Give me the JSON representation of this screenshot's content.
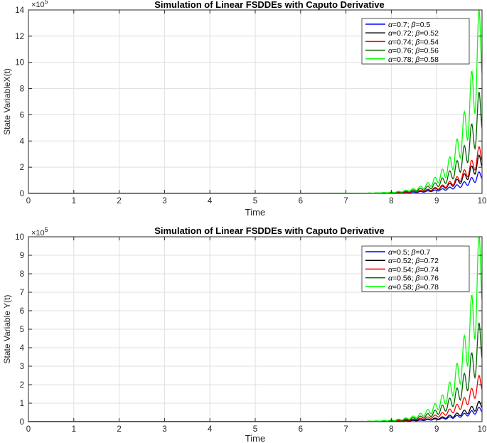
{
  "chart_data": [
    {
      "type": "line",
      "title": "Simulation of Linear FSDDEs with Caputo Derivative",
      "xlabel": "Time",
      "ylabel": "State VariableX(t)",
      "y_exponent_label": "×10",
      "y_exponent_power": "5",
      "xlim": [
        0,
        10
      ],
      "ylim": [
        0,
        14
      ],
      "xticks": [
        "0",
        "1",
        "2",
        "3",
        "4",
        "5",
        "6",
        "7",
        "8",
        "9",
        "10"
      ],
      "yticks": [
        "0",
        "2",
        "4",
        "6",
        "8",
        "10",
        "12",
        "14"
      ],
      "grid": true,
      "legend_position": "top-right",
      "series": [
        {
          "name": "α=0.7; β=0.5",
          "legend_prefix": "α",
          "legend_value": "=0.7; ",
          "legend_beta": "β",
          "legend_beta_value": "=0.5",
          "color": "#0000ff",
          "final_value": 1.5,
          "growth_start": 6.5,
          "oscillation": 0.25
        },
        {
          "name": "α=0.72; β=0.52",
          "legend_prefix": "α",
          "legend_value": "=0.72; ",
          "legend_beta": "β",
          "legend_beta_value": "=0.52",
          "color": "#000000",
          "final_value": 2.7,
          "growth_start": 6.5,
          "oscillation": 0.25
        },
        {
          "name": "α=0.74; β=0.54",
          "legend_prefix": "α",
          "legend_value": "=0.74; ",
          "legend_beta": "β",
          "legend_beta_value": "=0.54",
          "color": "#ff0000",
          "final_value": 3.3,
          "growth_start": 6.5,
          "oscillation": 0.25
        },
        {
          "name": "α=0.76; β=0.56",
          "legend_prefix": "α",
          "legend_value": "=0.76; ",
          "legend_beta": "β",
          "legend_beta_value": "=0.56",
          "color": "#006400",
          "final_value": 7.0,
          "growth_start": 6.5,
          "oscillation": 0.3
        },
        {
          "name": "α=0.78; β=0.58",
          "legend_prefix": "α",
          "legend_value": "=0.78; ",
          "legend_beta": "β",
          "legend_beta_value": "=0.58",
          "color": "#00ff00",
          "final_value": 12.8,
          "growth_start": 6.5,
          "oscillation": 0.3
        }
      ]
    },
    {
      "type": "line",
      "title": "Simulation of Linear FSDDEs with Caputo Derivative",
      "xlabel": "Time",
      "ylabel": "State Variable Y(t)",
      "y_exponent_label": "×10",
      "y_exponent_power": "5",
      "xlim": [
        0,
        10
      ],
      "ylim": [
        0,
        10
      ],
      "xticks": [
        "0",
        "1",
        "2",
        "3",
        "4",
        "5",
        "6",
        "7",
        "8",
        "9",
        "10"
      ],
      "yticks": [
        "0",
        "1",
        "2",
        "3",
        "4",
        "5",
        "6",
        "7",
        "8",
        "9",
        "10"
      ],
      "grid": true,
      "legend_position": "top-right",
      "series": [
        {
          "name": "α=0.5; β=0.7",
          "legend_prefix": "α",
          "legend_value": "=0.5; ",
          "legend_beta": "β",
          "legend_beta_value": "=0.7",
          "color": "#0000ff",
          "final_value": 0.7,
          "growth_start": 6.5,
          "oscillation": 0.25
        },
        {
          "name": "α=0.52; β=0.72",
          "legend_prefix": "α",
          "legend_value": "=0.52; ",
          "legend_beta": "β",
          "legend_beta_value": "=0.72",
          "color": "#000000",
          "final_value": 1.0,
          "growth_start": 6.5,
          "oscillation": 0.25
        },
        {
          "name": "α=0.54; β=0.74",
          "legend_prefix": "α",
          "legend_value": "=0.54; ",
          "legend_beta": "β",
          "legend_beta_value": "=0.74",
          "color": "#ff0000",
          "final_value": 2.3,
          "growth_start": 6.5,
          "oscillation": 0.25
        },
        {
          "name": "α=0.56; β=0.76",
          "legend_prefix": "α",
          "legend_value": "=0.56; ",
          "legend_beta": "β",
          "legend_beta_value": "=0.76",
          "color": "#006400",
          "final_value": 4.8,
          "growth_start": 6.5,
          "oscillation": 0.3
        },
        {
          "name": "α=0.58; β=0.78",
          "legend_prefix": "α",
          "legend_value": "=0.58; ",
          "legend_beta": "β",
          "legend_beta_value": "=0.78",
          "color": "#00ff00",
          "final_value": 9.2,
          "growth_start": 6.5,
          "oscillation": 0.3
        }
      ]
    }
  ]
}
